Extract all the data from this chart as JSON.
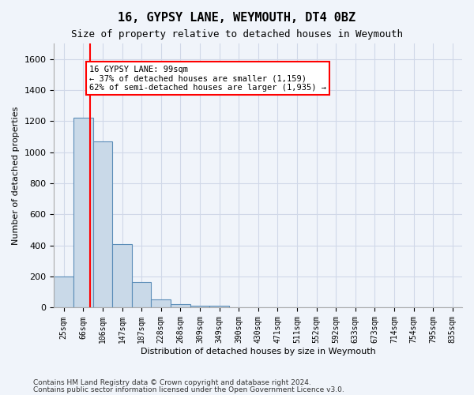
{
  "title1": "16, GYPSY LANE, WEYMOUTH, DT4 0BZ",
  "title2": "Size of property relative to detached houses in Weymouth",
  "xlabel": "Distribution of detached houses by size in Weymouth",
  "ylabel": "Number of detached properties",
  "bin_labels": [
    "25sqm",
    "66sqm",
    "106sqm",
    "147sqm",
    "187sqm",
    "228sqm",
    "268sqm",
    "309sqm",
    "349sqm",
    "390sqm",
    "430sqm",
    "471sqm",
    "511sqm",
    "552sqm",
    "592sqm",
    "633sqm",
    "673sqm",
    "714sqm",
    "754sqm",
    "795sqm",
    "835sqm"
  ],
  "bar_heights": [
    200,
    1220,
    1070,
    410,
    163,
    55,
    25,
    15,
    15,
    0,
    0,
    0,
    0,
    0,
    0,
    0,
    0,
    0,
    0,
    0,
    0
  ],
  "bar_color": "#c9d9e8",
  "bar_edge_color": "#5b8db8",
  "property_line_x": 1.37,
  "property_value": "99sqm",
  "annotation_text": "16 GYPSY LANE: 99sqm\n← 37% of detached houses are smaller (1,159)\n62% of semi-detached houses are larger (1,935) →",
  "annotation_box_color": "white",
  "annotation_box_edge_color": "red",
  "ylim": [
    0,
    1700
  ],
  "yticks": [
    0,
    200,
    400,
    600,
    800,
    1000,
    1200,
    1400,
    1600
  ],
  "grid_color": "#d0d8e8",
  "footer1": "Contains HM Land Registry data © Crown copyright and database right 2024.",
  "footer2": "Contains public sector information licensed under the Open Government Licence v3.0.",
  "bg_color": "#f0f4fa"
}
